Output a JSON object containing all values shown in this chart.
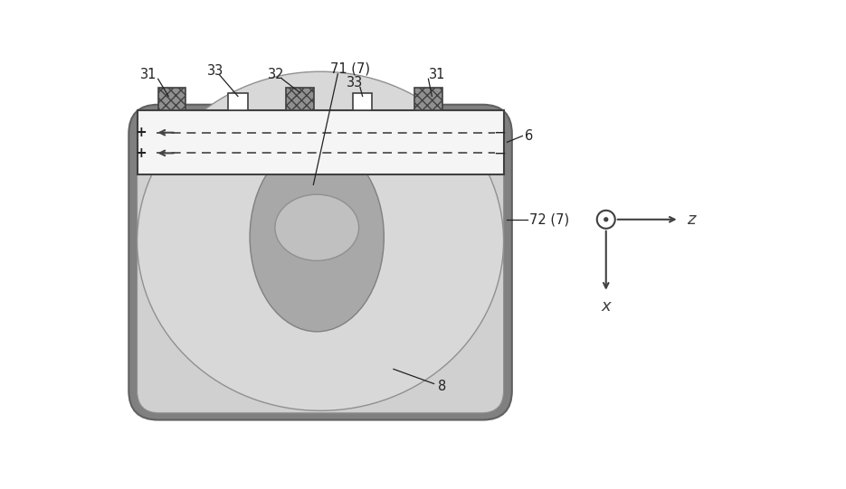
{
  "bg_color": "#ffffff",
  "outer_box_color": "#808080",
  "outer_box_edge": "#606060",
  "fiber_body_color": "#d0d0d0",
  "fiber_body_edge": "#909090",
  "cladding_outer_color": "#a8a8a8",
  "cladding_outer_edge": "#808080",
  "cladding_inner_color": "#c0c0c0",
  "cladding_inner_edge": "#909090",
  "plate_color": "#f5f5f5",
  "plate_edge": "#404040",
  "shaded_elec_color": "#909090",
  "shaded_elec_edge": "#404040",
  "white_elec_color": "#ffffff",
  "white_elec_edge": "#404040",
  "label_color": "#222222",
  "dashed_color": "#444444",
  "coord_color": "#404040",
  "plus_color": "#222222",
  "minus_color": "#222222"
}
